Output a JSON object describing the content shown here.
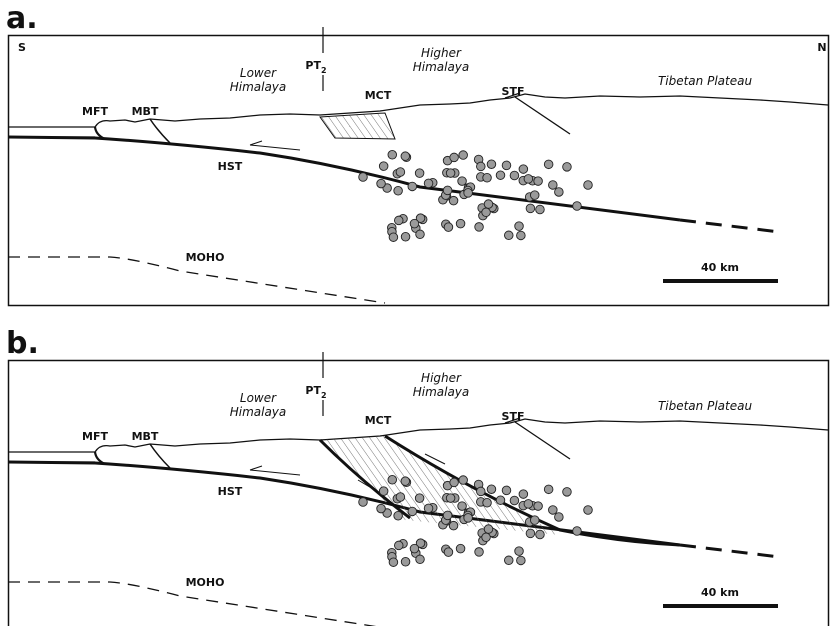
{
  "panels": [
    {
      "label": "a.",
      "south": "S",
      "north": "N",
      "pt": "PT",
      "pt_sub": "2",
      "lower": [
        "Lower",
        "Himalaya"
      ],
      "higher": [
        "Higher",
        "Himalaya"
      ],
      "mct": "MCT",
      "stf": "STF",
      "tibet": "Tibetan Plateau",
      "mft": "MFT",
      "mbt": "MBT",
      "hst": "HST",
      "moho": "MOHO",
      "scale": "40 km"
    },
    {
      "label": "b.",
      "pt": "PT",
      "pt_sub": "2",
      "lower": [
        "Lower",
        "Himalaya"
      ],
      "higher": [
        "Higher",
        "Himalaya"
      ],
      "mct": "MCT",
      "stf": "STF",
      "tibet": "Tibetan Plateau",
      "mft": "MFT",
      "mbt": "MBT",
      "hst": "HST",
      "moho": "MOHO",
      "scale": "40 km"
    }
  ]
}
